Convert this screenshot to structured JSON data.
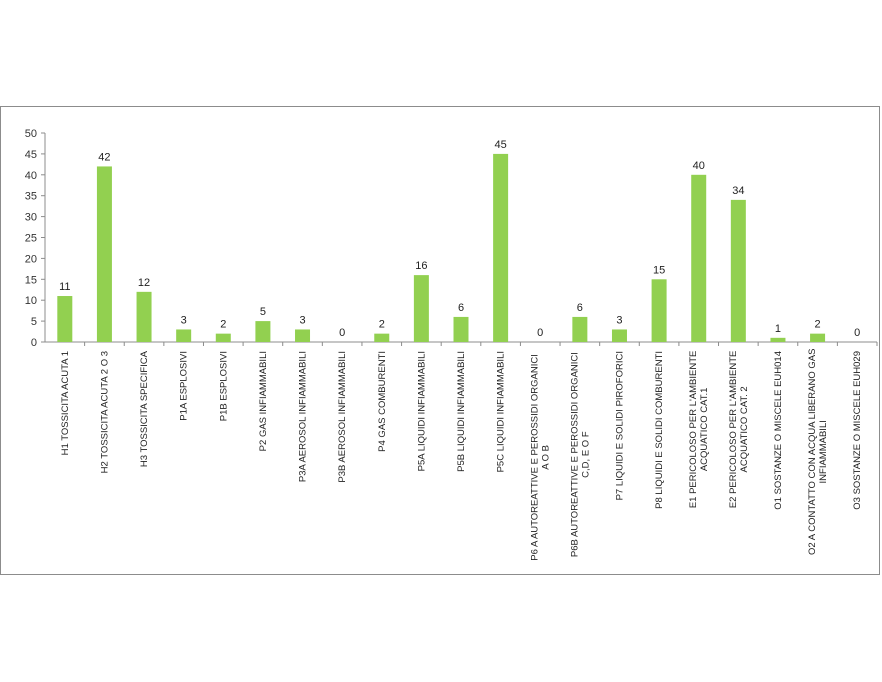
{
  "chart_data": {
    "type": "bar",
    "categories": [
      [
        "H1 TOSSICITA ACUTA 1"
      ],
      [
        "H2 TOSSICITA ACUTA 2 O 3"
      ],
      [
        "H3 TOSSICITA SPECIFICA"
      ],
      [
        "P1A ESPLOSIVI"
      ],
      [
        "P1B ESPLOSIVI"
      ],
      [
        "P2 GAS INFIAMMABILI"
      ],
      [
        "P3A AEROSOL INFIAMMABILI"
      ],
      [
        "P3B AEROSOL INFIAMMABILI"
      ],
      [
        "P4 GAS COMBURENTI"
      ],
      [
        "P5A LIQUIDI INFIAMMABILI"
      ],
      [
        "P5B LIQUIDI INFIAMMABILI"
      ],
      [
        "P5C LIQUIDI INFIAMMABILI"
      ],
      [
        "P6 A AUTOREATTIVE E PEROSSIDI ORGANICI",
        "A O B"
      ],
      [
        "P6B AUTOREATTIVE E PEROSSIDI ORGANICI",
        "C,D, E O F"
      ],
      [
        "P7 LIQUIDI E SOLIDI PIROFORICI"
      ],
      [
        "P8 LIQUIDI E SOLIDI COMBURENTI"
      ],
      [
        "E1 PERICOLOSO PER L'AMBIENTE",
        "ACQUATICO CAT.1"
      ],
      [
        "E2 PERICOLOSO PER L'AMBIENTE",
        "ACQUATICO CAT. 2"
      ],
      [
        "O1 SOSTANZE O MISCELE  EUH014"
      ],
      [
        "O2 A CONTATTO CON ACQUA LIBERANO GAS",
        "INFIAMMABILI"
      ],
      [
        "O3 SOSTANZE O MISCELE  EUH029"
      ]
    ],
    "values": [
      11,
      42,
      12,
      3,
      2,
      5,
      3,
      0,
      2,
      16,
      6,
      45,
      0,
      6,
      3,
      15,
      40,
      34,
      1,
      2,
      0
    ],
    "ylim": [
      0,
      50
    ],
    "yticks": [
      0,
      5,
      10,
      15,
      20,
      25,
      30,
      35,
      40,
      45,
      50
    ],
    "grid": false,
    "legend": "none",
    "bar_color": "#92d050"
  }
}
